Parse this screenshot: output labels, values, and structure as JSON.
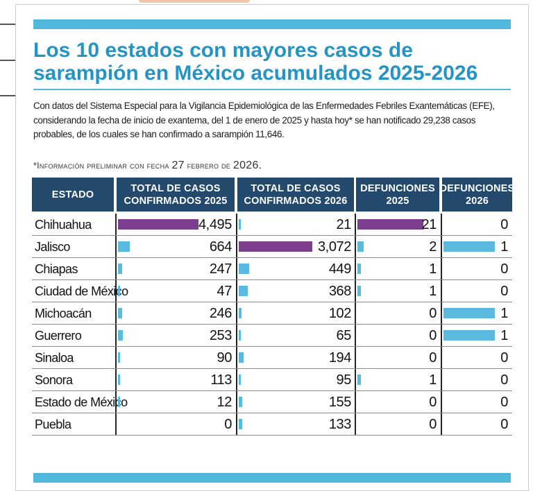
{
  "title": "Los 10 estados con mayores casos de sarampión en México acumulados 2025-2026",
  "description": "Con datos del Sistema Especial para la Vigilancia Epidemiológica de las Enfermedades Febriles Exantemáticas (EFE), considerando la fecha de inicio de exantema, del 1 de enero de 2025 y hasta hoy* se han notificado 29,238 casos probables, de los cuales se han confirmado a sarampión 11,646.",
  "note": {
    "prefix": "*Información preliminar con fecha ",
    "day": "27",
    "middle": " febrero de ",
    "year": "2026."
  },
  "colors": {
    "accent": "#4fb8db",
    "header_bg": "#234a6c",
    "bar_top": "#7b3f8e",
    "bar": "#5ab9de",
    "title": "#2494c4"
  },
  "chart_data": {
    "type": "table",
    "title": "Los 10 estados con mayores casos de sarampión en México acumulados 2025-2026",
    "columns": [
      {
        "key": "state",
        "label": "ESTADO"
      },
      {
        "key": "c2025",
        "label": "TOTAL DE CASOS CONFIRMADOS 2025"
      },
      {
        "key": "c2026",
        "label": "TOTAL DE CASOS CONFIRMADOS 2026"
      },
      {
        "key": "d2025",
        "label": "DEFUNCIONES 2025"
      },
      {
        "key": "d2026",
        "label": "DEFUNCIONES 2026"
      }
    ],
    "rows": [
      {
        "state": "Chihuahua",
        "c2025": 4495,
        "c2026": 21,
        "d2025": 21,
        "d2026": 0
      },
      {
        "state": "Jalisco",
        "c2025": 664,
        "c2026": 3072,
        "d2025": 2,
        "d2026": 1
      },
      {
        "state": "Chiapas",
        "c2025": 247,
        "c2026": 449,
        "d2025": 1,
        "d2026": 0
      },
      {
        "state": "Ciudad de México",
        "c2025": 47,
        "c2026": 368,
        "d2025": 1,
        "d2026": 0
      },
      {
        "state": "Michoacán",
        "c2025": 246,
        "c2026": 102,
        "d2025": 0,
        "d2026": 1
      },
      {
        "state": "Guerrero",
        "c2025": 253,
        "c2026": 65,
        "d2025": 0,
        "d2026": 1
      },
      {
        "state": "Sinaloa",
        "c2025": 90,
        "c2026": 194,
        "d2025": 0,
        "d2026": 0
      },
      {
        "state": "Sonora",
        "c2025": 113,
        "c2026": 95,
        "d2025": 1,
        "d2026": 0
      },
      {
        "state": "Estado de México",
        "c2025": 12,
        "c2026": 155,
        "d2025": 0,
        "d2026": 0
      },
      {
        "state": "Puebla",
        "c2025": 0,
        "c2026": 133,
        "d2025": 0,
        "d2026": 0
      }
    ]
  }
}
